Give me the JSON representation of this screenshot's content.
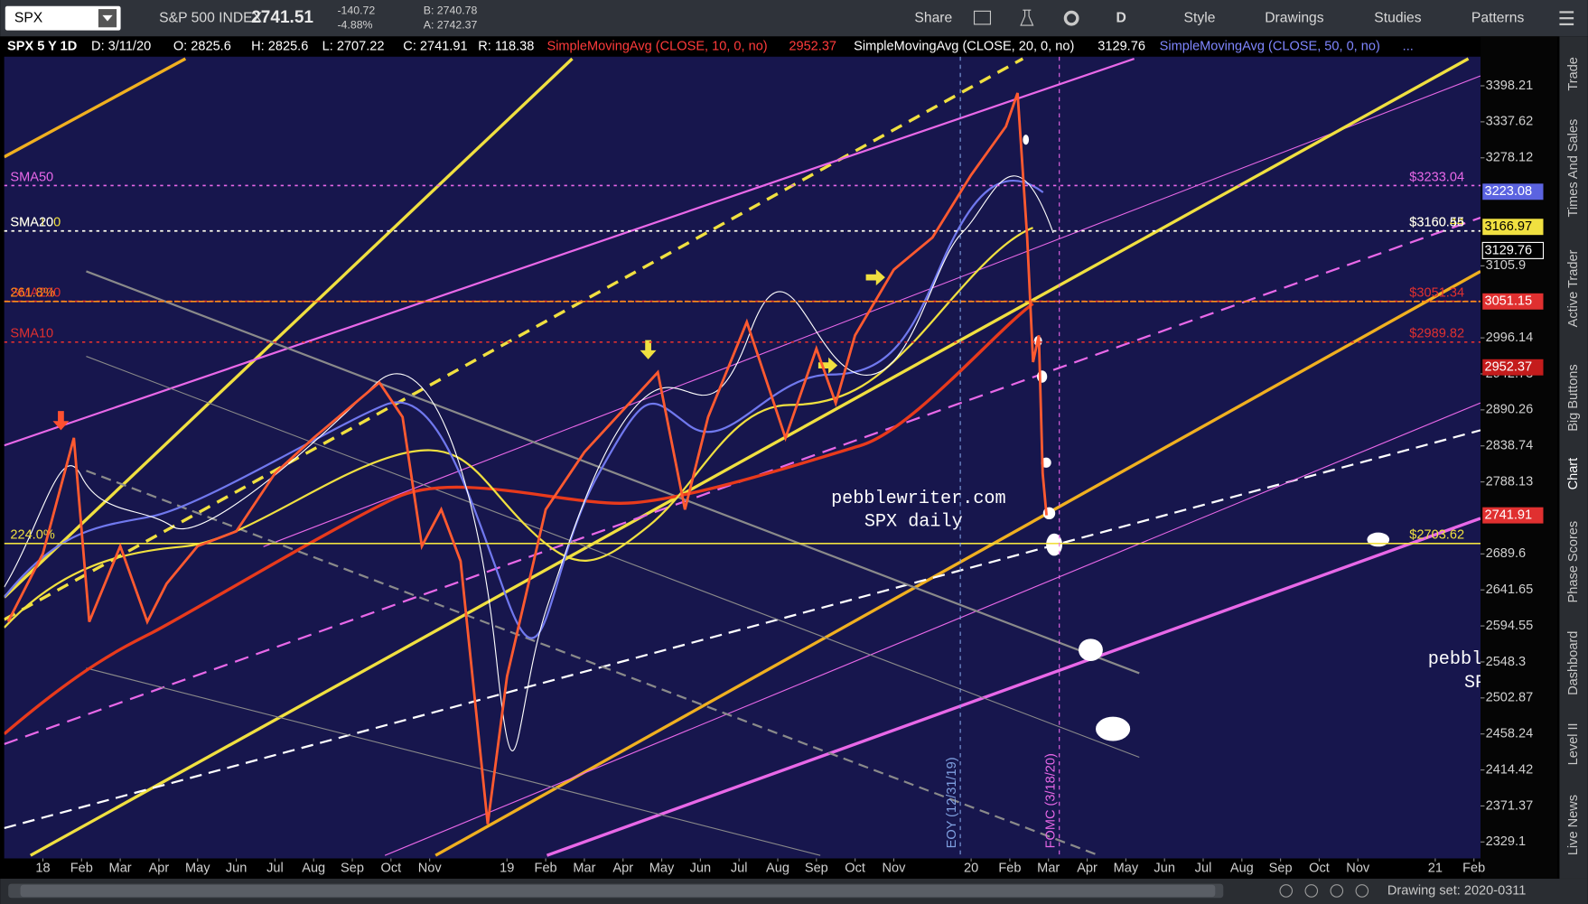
{
  "toolbar": {
    "symbol": "SPX",
    "name": "S&P 500 INDEX",
    "last": "2741.51",
    "change": "-140.72",
    "change_pct": "-4.88%",
    "bid": "B: 2740.78",
    "ask": "A: 2742.37",
    "buttons": [
      "Share",
      "D",
      "Style",
      "Drawings",
      "Studies",
      "Patterns"
    ]
  },
  "info_bar": {
    "symbol": "SPX 5 Y 1D",
    "date": "D: 3/11/20",
    "open": "O: 2825.6",
    "high": "H: 2825.6",
    "low": "L: 2707.22",
    "close": "C: 2741.91",
    "range": "R: 118.38",
    "studies": [
      {
        "name": "SimpleMovingAvg (CLOSE, 10, 0, no)",
        "value": "2952.37"
      },
      {
        "name": "SimpleMovingAvg (CLOSE, 20, 0, no)",
        "value": "3129.76"
      },
      {
        "name": "SimpleMovingAvg (CLOSE, 50, 0, no)",
        "value": "..."
      }
    ]
  },
  "sidebar_tabs": [
    "Trade",
    "Times And Sales",
    "Active Trader",
    "Big Buttons",
    "Chart",
    "Phase Scores",
    "Dashboard",
    "Level II",
    "Live News"
  ],
  "status": "Drawing set: 2020-0311",
  "chart_data": {
    "type": "line",
    "log": true,
    "xlim": [
      -1,
      37.17
    ],
    "ylim": [
      2310,
      3448
    ],
    "yticks": [
      3398.21,
      3337.62,
      3278.12,
      3105.9,
      2996.14,
      2942.73,
      2890.26,
      2838.74,
      2788.13,
      2689.6,
      2641.65,
      2594.55,
      2548.3,
      2502.87,
      2458.24,
      2414.42,
      2371.37,
      2329.1
    ],
    "xticks": [
      {
        "value": 0,
        "label": "18"
      },
      {
        "value": 1,
        "label": "Feb"
      },
      {
        "value": 2,
        "label": "Mar"
      },
      {
        "value": 3,
        "label": "Apr"
      },
      {
        "value": 4,
        "label": "May"
      },
      {
        "value": 5,
        "label": "Jun"
      },
      {
        "value": 6,
        "label": "Jul"
      },
      {
        "value": 7,
        "label": "Aug"
      },
      {
        "value": 8,
        "label": "Sep"
      },
      {
        "value": 9,
        "label": "Oct"
      },
      {
        "value": 10,
        "label": "Nov"
      },
      {
        "value": 12,
        "label": "19"
      },
      {
        "value": 13,
        "label": "Feb"
      },
      {
        "value": 14,
        "label": "Mar"
      },
      {
        "value": 15,
        "label": "Apr"
      },
      {
        "value": 16,
        "label": "May"
      },
      {
        "value": 17,
        "label": "Jun"
      },
      {
        "value": 18,
        "label": "Jul"
      },
      {
        "value": 19,
        "label": "Aug"
      },
      {
        "value": 20,
        "label": "Sep"
      },
      {
        "value": 21,
        "label": "Oct"
      },
      {
        "value": 22,
        "label": "Nov"
      },
      {
        "value": 24,
        "label": "20"
      },
      {
        "value": 25,
        "label": "Feb"
      },
      {
        "value": 26,
        "label": "Mar"
      },
      {
        "value": 27,
        "label": "Apr"
      },
      {
        "value": 28,
        "label": "May"
      },
      {
        "value": 29,
        "label": "Jun"
      },
      {
        "value": 30,
        "label": "Jul"
      },
      {
        "value": 31,
        "label": "Aug"
      },
      {
        "value": 32,
        "label": "Sep"
      },
      {
        "value": 33,
        "label": "Oct"
      },
      {
        "value": 34,
        "label": "Nov"
      },
      {
        "value": 36,
        "label": "21"
      },
      {
        "value": 37,
        "label": "Feb"
      }
    ],
    "x": [
      -0.9,
      0,
      0.8,
      1.2,
      2,
      2.7,
      3.2,
      4,
      5,
      6,
      7,
      8.7,
      9.3,
      9.8,
      10.3,
      10.8,
      11.5,
      12,
      13,
      14,
      15.9,
      16.6,
      17.2,
      18.2,
      19.2,
      20,
      20.5,
      21,
      22,
      23,
      24,
      24.9,
      25.2,
      25.45,
      25.6,
      25.75,
      25.85,
      25.95
    ],
    "series": [
      {
        "name": "SPX",
        "color": "#ff5a30",
        "values": [
          2600,
          2690,
          2850,
          2600,
          2700,
          2600,
          2650,
          2700,
          2720,
          2800,
          2850,
          2930,
          2880,
          2700,
          2750,
          2680,
          2350,
          2530,
          2750,
          2830,
          2945,
          2750,
          2880,
          3020,
          2850,
          2980,
          2900,
          3000,
          3100,
          3150,
          3250,
          3330,
          3386,
          3150,
          2960,
          3000,
          2800,
          2741.91
        ]
      }
    ],
    "levels": [
      {
        "value": 3233.04,
        "color": "#e868e8",
        "dash": "3 4",
        "left": "SMA50",
        "right": "$3233.04"
      },
      {
        "value": 3160.44,
        "color": "#f0e040",
        "dash": "3 4",
        "left": "SMA100",
        "right": "$3160.44"
      },
      {
        "value": 3160.55,
        "color": "#ffffff",
        "dash": "3 4",
        "left": "SMA20",
        "right": "$3160.55"
      },
      {
        "value": 3051.34,
        "color": "#e03030",
        "dash": "4 3",
        "left": "SMA200",
        "right": "$3051.34"
      },
      {
        "value": 3051.15,
        "color": "#ff8c1a",
        "dash": "6 2",
        "left": "261.8%"
      },
      {
        "value": 2989.82,
        "color": "#e03030",
        "dash": "3 4",
        "left": "SMA10",
        "right": "$2989.82"
      },
      {
        "value": 2703.62,
        "color": "#f0e040",
        "dash": "none",
        "left": "224.0%",
        "right": "$2703.62"
      }
    ],
    "axis_labels": [
      {
        "value": 3223.08,
        "label": "3223.08",
        "bg": "#5b63e0",
        "fg": "#ffffff"
      },
      {
        "value": 3166.97,
        "label": "3166.97",
        "bg": "#f0e040",
        "fg": "#000000"
      },
      {
        "value": 3129.76,
        "label": "3129.76",
        "bg": "#000000",
        "fg": "#ffffff"
      },
      {
        "value": 3051.15,
        "label": "3051.15",
        "bg": "#e03030",
        "fg": "#ffffff"
      },
      {
        "value": 2952.37,
        "label": "2952.37",
        "bg": "#c41c1c",
        "fg": "#ffffff"
      },
      {
        "value": 2741.91,
        "label": "2741.91",
        "bg": "#e03030",
        "fg": "#ffffff"
      }
    ],
    "vlines": [
      {
        "x": 23.72,
        "label": "EOY (12/31/19)",
        "color": "#7fa0e0"
      },
      {
        "x": 26.28,
        "label": "FOMC (3/18/20)",
        "color": "#e868e8"
      }
    ],
    "annotations": [
      "pebblewriter.com",
      "SPX daily"
    ]
  }
}
